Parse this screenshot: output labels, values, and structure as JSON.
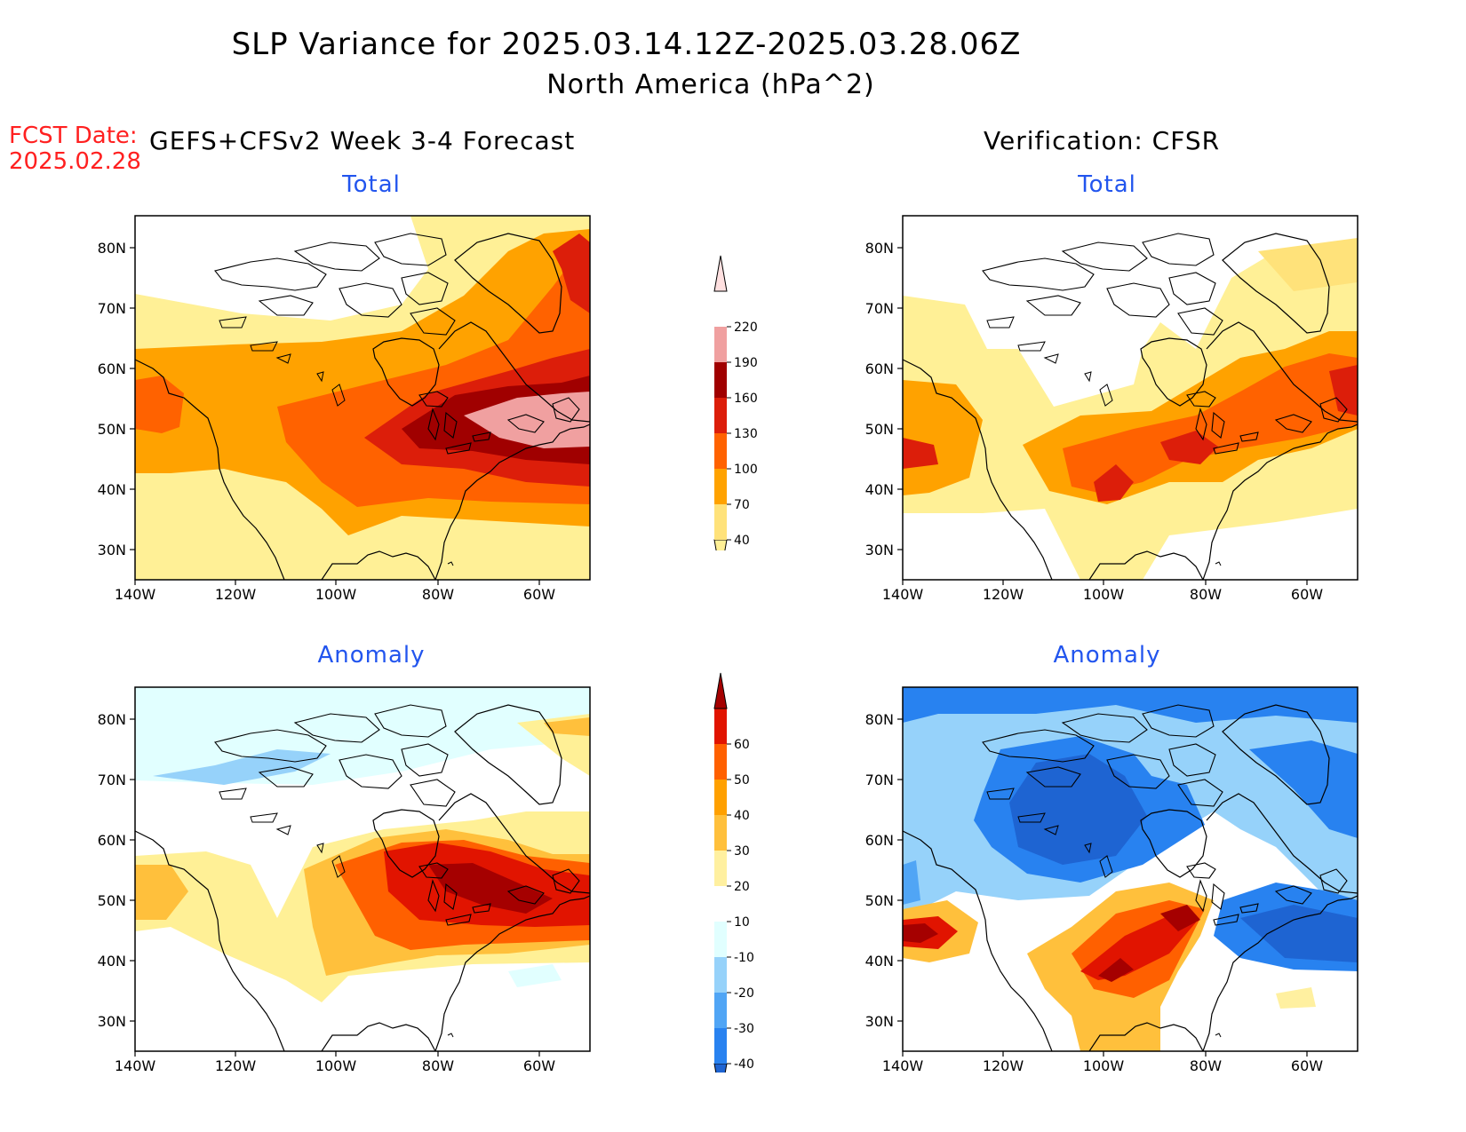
{
  "header": {
    "title": "SLP Variance for 2025.03.14.12Z-2025.03.28.06Z",
    "subtitle": "North America (hPa^2)",
    "fcst_label": "FCST Date:",
    "fcst_date": "2025.02.28",
    "left_heading": "GEFS+CFSv2 Week 3-4 Forecast",
    "right_heading": "Verification: CFSR"
  },
  "panels": {
    "forecast_total": "Total",
    "verification_total": "Total",
    "forecast_anomaly": "Anomaly",
    "verification_anomaly": "Anomaly"
  },
  "axes": {
    "lat_ticks": [
      "80N",
      "70N",
      "60N",
      "50N",
      "40N",
      "30N"
    ],
    "lon_ticks": [
      "140W",
      "120W",
      "100W",
      "80W",
      "60W"
    ]
  },
  "colorbar_total": {
    "labels": [
      "40",
      "70",
      "100",
      "130",
      "160",
      "190",
      "220"
    ],
    "colors": [
      "#fff096",
      "#ffe27a",
      "#ffa200",
      "#ff6200",
      "#dc1e0a",
      "#a00000",
      "#f0a0a0",
      "#ffe0e0"
    ]
  },
  "colorbar_anomaly": {
    "labels": [
      "-40",
      "-30",
      "-20",
      "-10",
      "10",
      "20",
      "30",
      "40",
      "50",
      "60"
    ],
    "colors": [
      "#1e64d2",
      "#2882f0",
      "#50a5f5",
      "#96d2fa",
      "#e1ffff",
      "#ffffff",
      "#fff0a0",
      "#ffc03c",
      "#ffa000",
      "#ff6000",
      "#e11400",
      "#a50000"
    ]
  }
}
